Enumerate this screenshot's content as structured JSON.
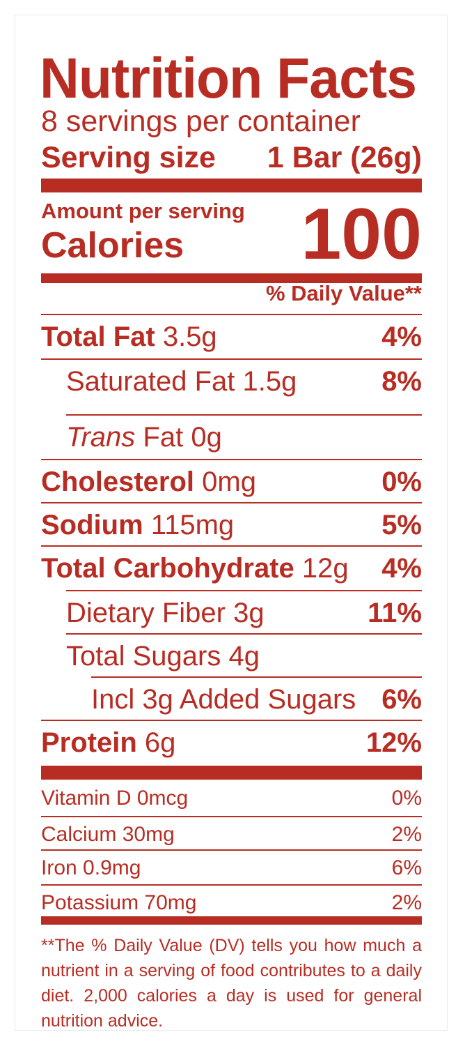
{
  "label": {
    "title": "Nutrition Facts",
    "servings_per_container": "8 servings per container",
    "serving_size_label": "Serving size",
    "serving_size_value": "1 Bar (26g)",
    "amount_per_serving": "Amount per serving",
    "calories_label": "Calories",
    "calories_value": "100",
    "daily_value_header": "% Daily Value**",
    "nutrients": [
      {
        "name": "Total Fat",
        "amount": "3.5g",
        "dv": "4%"
      },
      {
        "name": "Saturated Fat",
        "amount": "1.5g",
        "dv": "8%"
      },
      {
        "name_italic": "Trans",
        "name_rest": "Fat",
        "amount": "0g",
        "dv": ""
      },
      {
        "name": "Cholesterol",
        "amount": "0mg",
        "dv": "0%"
      },
      {
        "name": "Sodium",
        "amount": "115mg",
        "dv": "5%"
      },
      {
        "name": "Total Carbohydrate",
        "amount": "12g",
        "dv": "4%"
      },
      {
        "name": "Dietary Fiber",
        "amount": "3g",
        "dv": "11%"
      },
      {
        "name": "Total Sugars",
        "amount": "4g",
        "dv": ""
      },
      {
        "name": "Incl 3g Added Sugars",
        "amount": "",
        "dv": "6%"
      },
      {
        "name": "Protein",
        "amount": "6g",
        "dv": "12%"
      }
    ],
    "vitamins": [
      {
        "name": "Vitamin D",
        "amount": "0mcg",
        "dv": "0%"
      },
      {
        "name": "Calcium",
        "amount": "30mg",
        "dv": "2%"
      },
      {
        "name": "Iron",
        "amount": "0.9mg",
        "dv": "6%"
      },
      {
        "name": "Potassium",
        "amount": "70mg",
        "dv": "2%"
      }
    ],
    "footnote": "**The % Daily Value (DV) tells you how much a nutrient in a serving of food contributes to a daily diet. 2,000 calories a day is used for general nutrition advice.",
    "colors": {
      "ink": "#b82d23",
      "background": "#ffffff"
    }
  }
}
